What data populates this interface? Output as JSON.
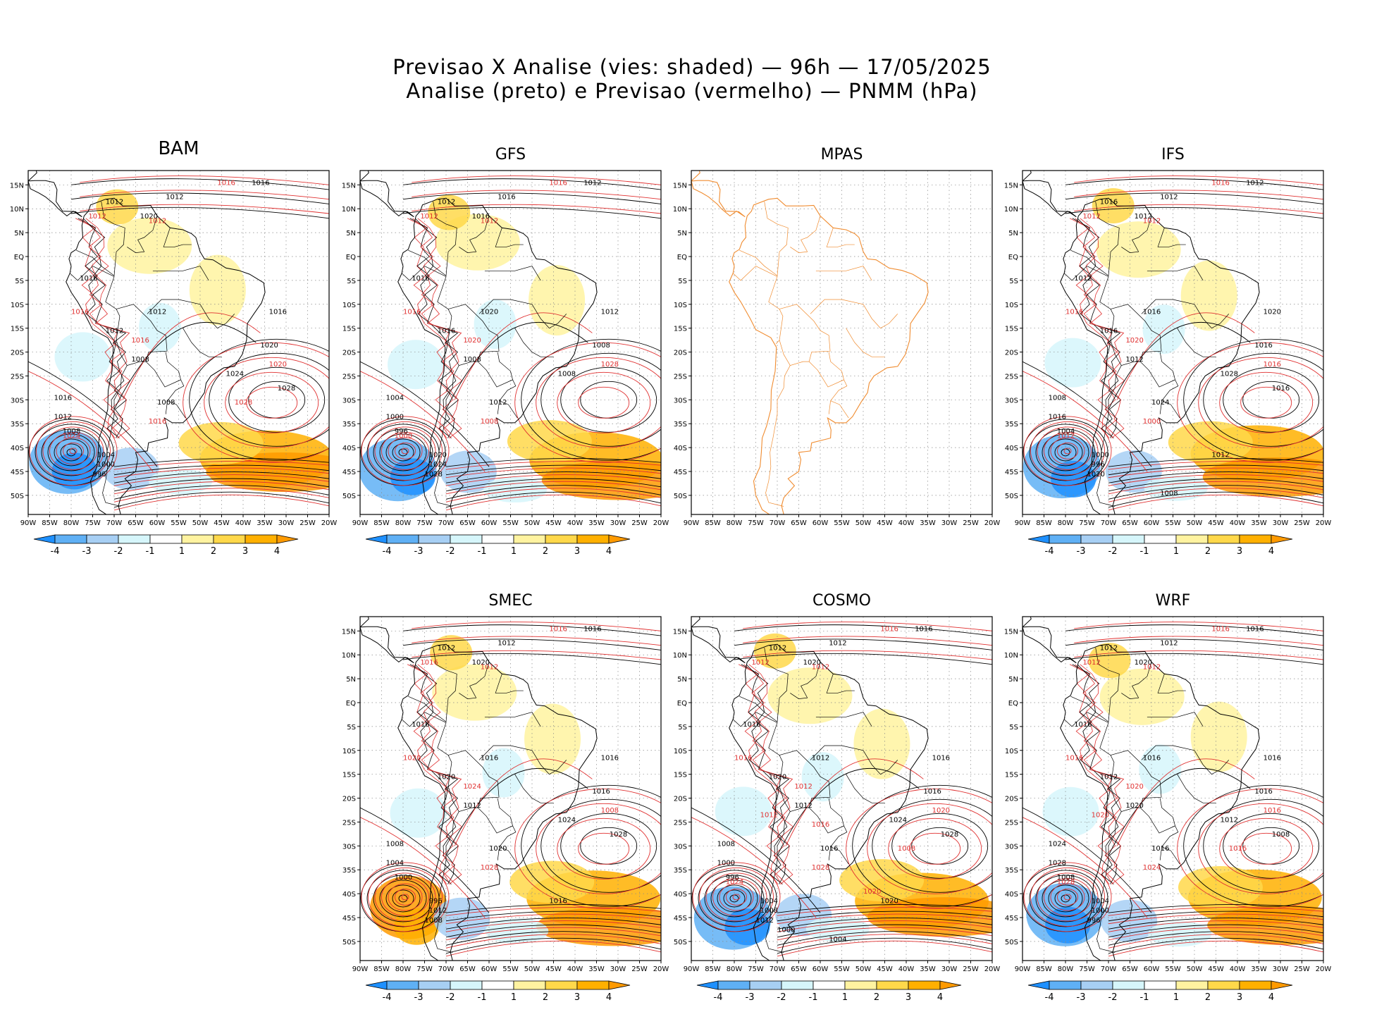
{
  "header": {
    "line1": "Previsao X Analise (vies: shaded) — 96h — 17/05/2025",
    "line2": "Analise (preto) e Previsao (vermelho) — PNMM (hPa)"
  },
  "axes": {
    "lat_labels": [
      "15N",
      "10N",
      "5N",
      "EQ",
      "5S",
      "10S",
      "15S",
      "20S",
      "25S",
      "30S",
      "35S",
      "40S",
      "45S",
      "50S"
    ],
    "lon_labels": [
      "90W",
      "85W",
      "80W",
      "75W",
      "70W",
      "65W",
      "60W",
      "55W",
      "50W",
      "45W",
      "40W",
      "35W",
      "30W",
      "25W",
      "20W"
    ]
  },
  "colorbar": {
    "labels": [
      "-4",
      "-3",
      "-2",
      "-1",
      "1",
      "2",
      "3",
      "4"
    ],
    "colors": [
      "#1e90ff",
      "#5fb0f5",
      "#a7cff4",
      "#d6f6fb",
      "#ffffff",
      "#fff3a0",
      "#ffd84a",
      "#ffb000",
      "#ff9a00"
    ]
  },
  "colors": {
    "analysis": "#000000",
    "forecast": "#e03030",
    "coastline": "#000000",
    "coastline_mpas": "#f08c30",
    "grid": "#888888"
  },
  "panels": [
    {
      "id": "bam",
      "title": "BAM",
      "has_data": true,
      "colorbar": true,
      "analysis_labels": [
        "1016",
        "1012",
        "1012",
        "1016",
        "1012",
        "1020",
        "1016",
        "1020",
        "1012",
        "1008",
        "1016",
        "1012",
        "1008",
        "1004",
        "1000",
        "996",
        "1008",
        "1024",
        "1028"
      ],
      "forecast_labels": [
        "1016",
        "1012",
        "1012",
        "1016",
        "1016",
        "1020",
        "1016",
        "1024",
        "1028"
      ]
    },
    {
      "id": "gfs",
      "title": "GFS",
      "has_data": true,
      "colorbar": true,
      "analysis_labels": [
        "1012",
        "1016",
        "1012",
        "1016",
        "1020",
        "1016",
        "1012",
        "1008",
        "1016",
        "1008",
        "1004",
        "1000",
        "996",
        "1020",
        "1024",
        "1028",
        "1012",
        "1008"
      ],
      "forecast_labels": [
        "1016",
        "1012",
        "1012",
        "1016",
        "1020",
        "1028",
        "1008",
        "1000"
      ]
    },
    {
      "id": "mpas",
      "title": "MPAS",
      "has_data": false,
      "colorbar": false,
      "analysis_labels": [],
      "forecast_labels": []
    },
    {
      "id": "ifs",
      "title": "IFS",
      "has_data": true,
      "colorbar": true,
      "analysis_labels": [
        "1012",
        "1012",
        "1016",
        "1012",
        "1016",
        "1012",
        "1020",
        "1016",
        "1016",
        "1012",
        "1008",
        "1016",
        "1004",
        "1000",
        "996",
        "1020",
        "1024",
        "1028",
        "1016",
        "1012",
        "1008"
      ],
      "forecast_labels": [
        "1016",
        "1012",
        "1012",
        "1016",
        "1020",
        "1016",
        "1000",
        "1012"
      ]
    },
    {
      "id": "smec",
      "title": "SMEC",
      "has_data": true,
      "colorbar": true,
      "analysis_labels": [
        "1016",
        "1012",
        "1012",
        "1016",
        "1016",
        "1020",
        "1016",
        "1016",
        "1020",
        "1012",
        "1008",
        "1004",
        "1000",
        "996",
        "1012",
        "1008",
        "1020",
        "1024",
        "1028",
        "1016"
      ],
      "forecast_labels": [
        "1016",
        "1012",
        "1016",
        "1020",
        "1024",
        "1008",
        "1028"
      ]
    },
    {
      "id": "cosmo",
      "title": "COSMO",
      "has_data": true,
      "colorbar": true,
      "analysis_labels": [
        "1016",
        "1012",
        "1012",
        "1016",
        "1012",
        "1020",
        "1016",
        "1016",
        "1020",
        "1012",
        "1008",
        "1000",
        "996",
        "1004",
        "1008",
        "1012",
        "1016",
        "1024",
        "1028",
        "1020",
        "1004",
        "1000"
      ],
      "forecast_labels": [
        "1016",
        "1012",
        "1012",
        "1016",
        "1012",
        "1020",
        "1028",
        "1024",
        "1008",
        "1012",
        "1020",
        "1016"
      ]
    },
    {
      "id": "wrf",
      "title": "WRF",
      "has_data": true,
      "colorbar": true,
      "analysis_labels": [
        "1016",
        "1012",
        "1012",
        "1016",
        "1016",
        "1020",
        "1016",
        "1016",
        "1012",
        "1020",
        "1024",
        "1028",
        "1008",
        "1004",
        "1000",
        "996",
        "1016",
        "1012",
        "1008"
      ],
      "forecast_labels": [
        "1016",
        "1012",
        "1012",
        "1016",
        "1020",
        "1016",
        "1024",
        "1028",
        "1016",
        "1020"
      ]
    }
  ]
}
